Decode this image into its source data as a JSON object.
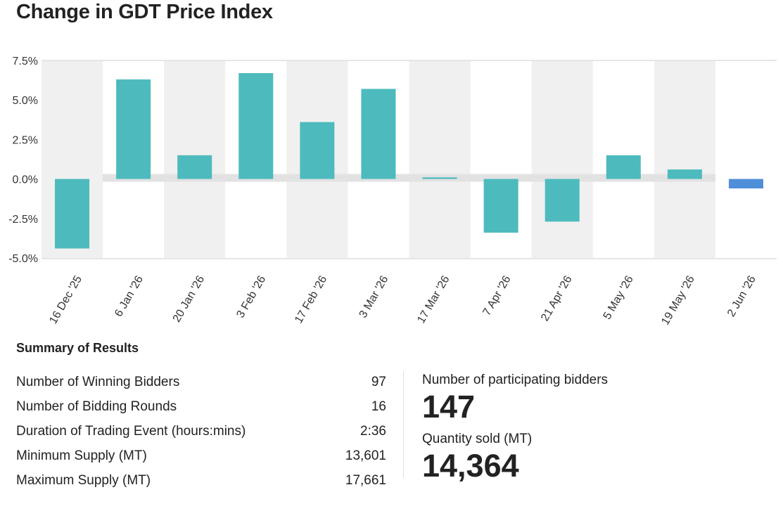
{
  "title": "Change in GDT Price Index",
  "chart_data": {
    "type": "bar",
    "categories": [
      "16 Dec '25",
      "6 Jan '26",
      "20 Jan '26",
      "3 Feb '26",
      "17 Feb '26",
      "3 Mar '26",
      "17 Mar '26",
      "7 Apr '26",
      "21 Apr '26",
      "5 May '26",
      "19 May '26",
      "2 Jun '26"
    ],
    "values": [
      -4.4,
      6.3,
      1.5,
      6.7,
      3.6,
      5.7,
      0.1,
      -3.4,
      -2.7,
      1.5,
      0.6,
      -0.6
    ],
    "ylim": [
      -5.0,
      7.5
    ],
    "yticks": [
      "7.5%",
      "5.0%",
      "2.5%",
      "0.0%",
      "-2.5%",
      "-5.0%"
    ],
    "ytick_values": [
      7.5,
      5.0,
      2.5,
      0.0,
      -2.5,
      -5.0
    ],
    "colors": {
      "bar": "#4dbbbd",
      "latest": "#4f8ed9",
      "band": "#f0f0f0",
      "zero": "#e2e2e2"
    },
    "grid": "alternating column bands",
    "legend": "none"
  },
  "summary": {
    "title": "Summary of Results",
    "rows": [
      {
        "label": "Number of Winning Bidders",
        "value": "97"
      },
      {
        "label": "Number of Bidding Rounds",
        "value": "16"
      },
      {
        "label": "Duration of Trading Event (hours:mins)",
        "value": "2:36"
      },
      {
        "label": "Minimum Supply (MT)",
        "value": "13,601"
      },
      {
        "label": "Maximum Supply (MT)",
        "value": "17,661"
      }
    ],
    "participating_label": "Number of participating bidders",
    "participating_value": "147",
    "quantity_label": "Quantity sold (MT)",
    "quantity_value": "14,364"
  }
}
